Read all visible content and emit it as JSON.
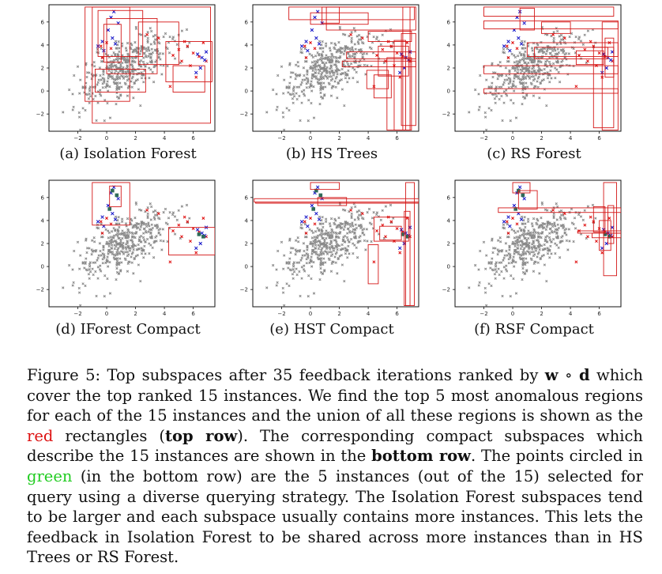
{
  "panels": [
    {
      "id": "a",
      "caption": "(a) Isolation Forest",
      "compact": false
    },
    {
      "id": "b",
      "caption": "(b) HS Trees",
      "compact": false
    },
    {
      "id": "c",
      "caption": "(c) RS Forest",
      "compact": false
    },
    {
      "id": "d",
      "caption": "(d) IForest Compact",
      "compact": true
    },
    {
      "id": "e",
      "caption": "(e) HST Compact",
      "compact": true
    },
    {
      "id": "f",
      "caption": "(f) RSF Compact",
      "compact": true
    }
  ],
  "axes": {
    "x_ticks": [
      "−2",
      "0",
      "2",
      "4",
      "6"
    ],
    "y_ticks": [
      "6",
      "4",
      "2",
      "0",
      "−2"
    ],
    "xlim": [
      -4,
      7.5
    ],
    "ylim": [
      -3.5,
      7.5
    ]
  },
  "colors": {
    "rect": "#d41818",
    "nominal": "#8a8a8a",
    "anomaly": "#e01010",
    "top_ranked": "#1515c8",
    "queried": "#2e6b5a",
    "green_word": "#22cc22",
    "red_word": "#dd1111"
  },
  "caption": {
    "p1": "Figure 5:  Top subspaces after 35 feedback iterations ranked by ",
    "w": "w",
    "circ": " ∘ ",
    "d": "d",
    "p2": " which cover the top ranked 15 instances. We find the top 5 most anomalous regions for each of the 15 instances and the union of all these regions is shown as the ",
    "red": "red",
    "p3": " rectangles (",
    "toprow": "top row",
    "p4": "). The corresponding compact subspaces which describe the 15 instances are shown in the ",
    "bottomrow": "bottom row",
    "p5": ". The points circled in ",
    "green": "green",
    "p6": " (in the bottom row) are the 5 instances (out of the 15) selected for query using a diverse querying strategy. The Isolation Forest subspaces tend to be larger and each subspace usually contains more instances. This lets the feedback in Isolation Forest to be shared across more instances than in HS Trees or RS Forest."
  }
}
